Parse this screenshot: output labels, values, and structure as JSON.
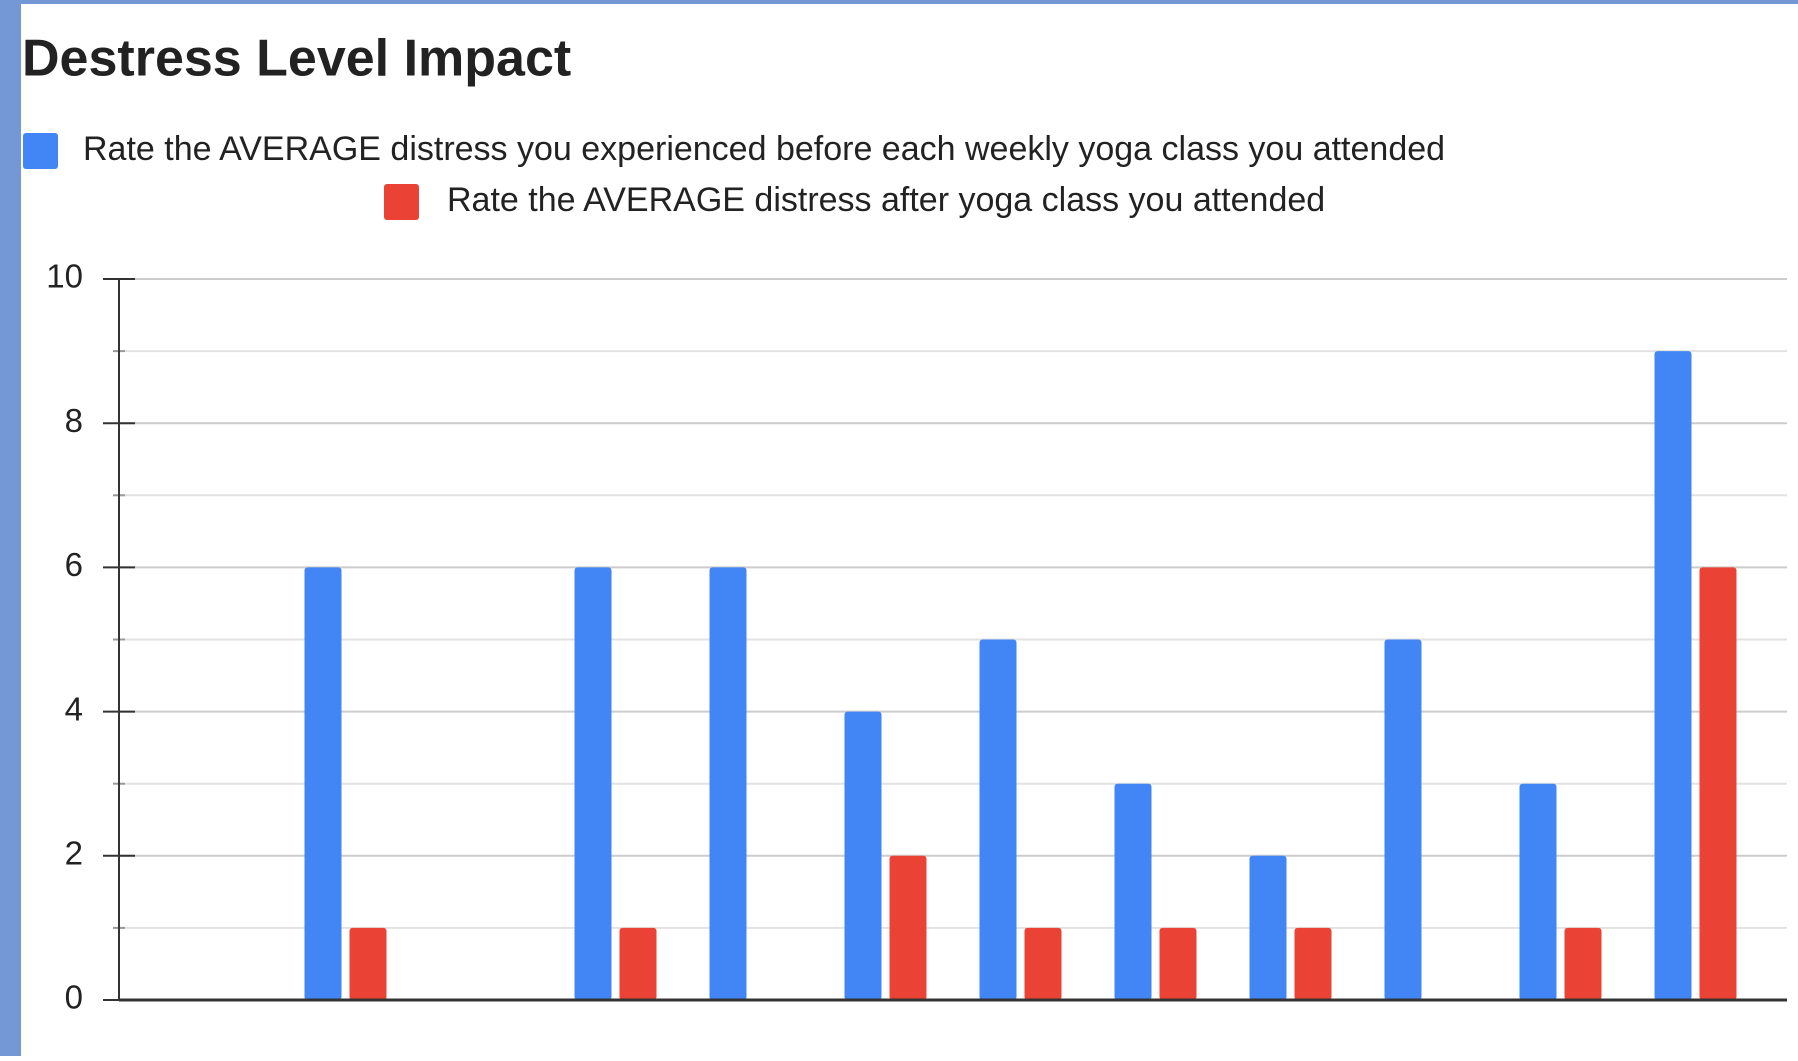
{
  "chart_data": {
    "type": "bar",
    "title": "Destress Level Impact",
    "categories": [
      null,
      null,
      null,
      null,
      null,
      null,
      null,
      null,
      null,
      null,
      null,
      null
    ],
    "series": [
      {
        "name": "Rate the AVERAGE distress you experienced before each weekly yoga class you attended",
        "color": "#4285f4",
        "values": [
          null,
          6,
          null,
          6,
          6,
          4,
          5,
          3,
          2,
          5,
          3,
          9
        ]
      },
      {
        "name": "Rate the AVERAGE distress after yoga class you attended",
        "color": "#ea4335",
        "values": [
          null,
          1,
          null,
          1,
          null,
          2,
          1,
          1,
          1,
          null,
          1,
          6
        ]
      }
    ],
    "ylim": [
      0,
      10
    ],
    "yticks": [
      0,
      2,
      4,
      6,
      8,
      10
    ],
    "grid": true,
    "legend": "top"
  }
}
